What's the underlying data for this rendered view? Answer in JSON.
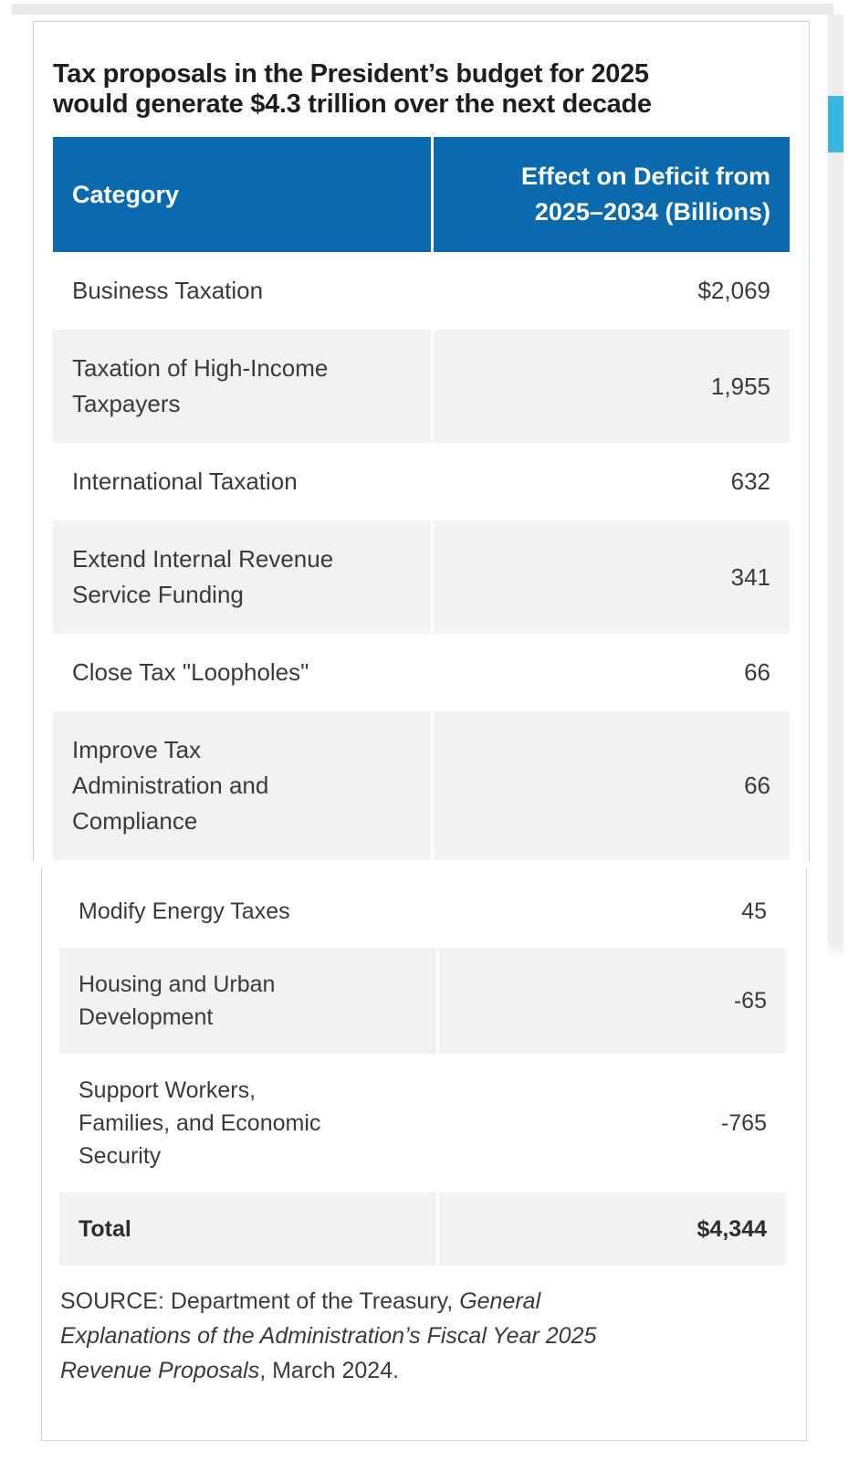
{
  "title": "Tax proposals in the President’s budget for 2025\nwould generate $4.3 trillion over the next decade",
  "table": {
    "header": {
      "category": "Category",
      "value": "Effect on Deficit from\n2025–2034 (Billions)"
    },
    "upper_rows": [
      {
        "category": "Business Taxation",
        "value": "$2,069"
      },
      {
        "category": "Taxation of High-Income\nTaxpayers",
        "value": "1,955"
      },
      {
        "category": "International Taxation",
        "value": "632"
      },
      {
        "category": "Extend Internal Revenue\nService Funding",
        "value": "341"
      },
      {
        "category": "Close Tax \"Loopholes\"",
        "value": "66"
      },
      {
        "category": "Improve Tax\nAdministration and\nCompliance",
        "value": "66"
      }
    ],
    "lower_rows": [
      {
        "category": "Modify Energy Taxes",
        "value": "45"
      },
      {
        "category": "Housing and Urban\nDevelopment",
        "value": "-65"
      },
      {
        "category": "Support Workers,\nFamilies, and Economic\nSecurity",
        "value": "-765"
      }
    ],
    "total": {
      "category": "Total",
      "value": "$4,344"
    }
  },
  "source": {
    "prefix": "SOURCE: Department of the Treasury, ",
    "italic": "General Explanations of the Administration’s Fiscal Year 2025 Revenue Proposals",
    "suffix": ", March 2024."
  },
  "colors": {
    "header_bg": "#0b6aae",
    "row_alt_bg": "#f2f2f2",
    "scrollbar_thumb": "#39b6e2",
    "scrollbar_track": "#ededed",
    "text": "#3a3a3a"
  },
  "chart_data": {
    "type": "table",
    "title": "Tax proposals in the President’s budget for 2025 would generate $4.3 trillion over the next decade",
    "columns": [
      "Category",
      "Effect on Deficit from 2025–2034 (Billions)"
    ],
    "rows": [
      [
        "Business Taxation",
        2069
      ],
      [
        "Taxation of High-Income Taxpayers",
        1955
      ],
      [
        "International Taxation",
        632
      ],
      [
        "Extend Internal Revenue Service Funding",
        341
      ],
      [
        "Close Tax \"Loopholes\"",
        66
      ],
      [
        "Improve Tax Administration and Compliance",
        66
      ],
      [
        "Modify Energy Taxes",
        45
      ],
      [
        "Housing and Urban Development",
        -65
      ],
      [
        "Support Workers, Families, and Economic Security",
        -765
      ]
    ],
    "total_row": [
      "Total",
      4344
    ],
    "value_unit": "USD billions",
    "source": "SOURCE: Department of the Treasury, General Explanations of the Administration’s Fiscal Year 2025 Revenue Proposals, March 2024."
  }
}
